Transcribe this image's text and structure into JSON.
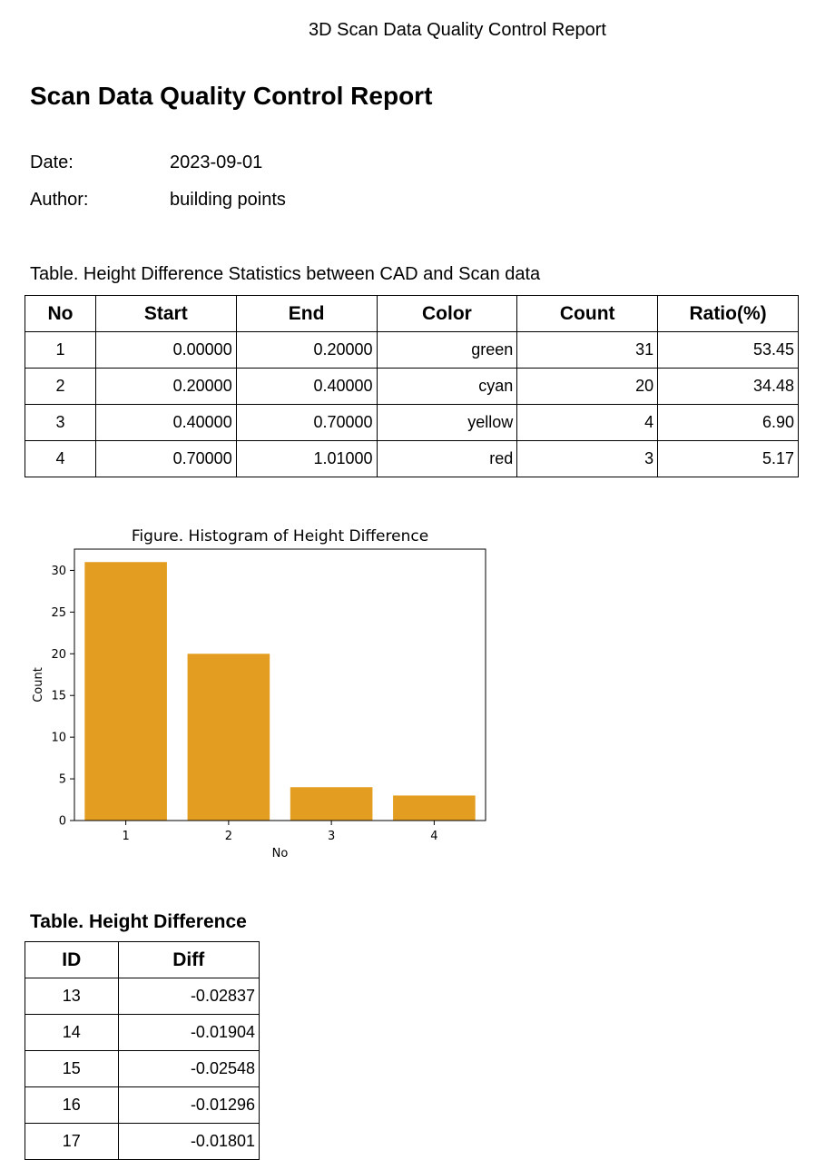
{
  "page_header": "3D Scan Data Quality Control Report",
  "title": "Scan Data Quality Control Report",
  "meta": {
    "date_label": "Date:",
    "date_value": "2023-09-01",
    "author_label": "Author:",
    "author_value": "building points"
  },
  "stats_table": {
    "caption": "Table. Height Difference Statistics between CAD and Scan data",
    "headers": [
      "No",
      "Start",
      "End",
      "Color",
      "Count",
      "Ratio(%)"
    ],
    "rows": [
      [
        "1",
        "0.00000",
        "0.20000",
        "green",
        "31",
        "53.45"
      ],
      [
        "2",
        "0.20000",
        "0.40000",
        "cyan",
        "20",
        "34.48"
      ],
      [
        "3",
        "0.40000",
        "0.70000",
        "yellow",
        "4",
        "6.90"
      ],
      [
        "4",
        "0.70000",
        "1.01000",
        "red",
        "3",
        "5.17"
      ]
    ]
  },
  "chart_data": {
    "type": "bar",
    "title": "Figure. Histogram of Height Difference",
    "xlabel": "No",
    "ylabel": "Count",
    "categories": [
      "1",
      "2",
      "3",
      "4"
    ],
    "values": [
      31,
      20,
      4,
      3
    ],
    "ylim": [
      0,
      32.55
    ],
    "yticks": [
      0,
      5,
      10,
      15,
      20,
      25,
      30
    ],
    "bar_color": "#e39e21",
    "grid": false
  },
  "diff_table": {
    "caption": "Table. Height Difference",
    "headers": [
      "ID",
      "Diff"
    ],
    "rows": [
      [
        "13",
        "-0.02837"
      ],
      [
        "14",
        "-0.01904"
      ],
      [
        "15",
        "-0.02548"
      ],
      [
        "16",
        "-0.01296"
      ],
      [
        "17",
        "-0.01801"
      ]
    ]
  }
}
